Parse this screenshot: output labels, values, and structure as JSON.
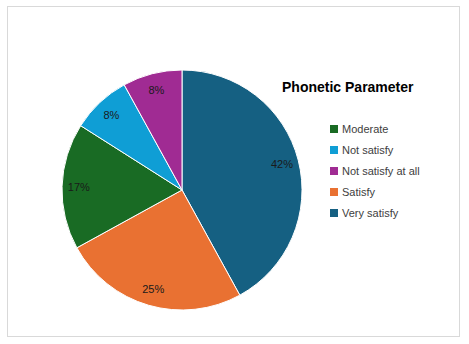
{
  "chart_data": {
    "type": "pie",
    "title": "Phonetic Parameter",
    "categories": [
      "Very satisfy",
      "Satisfy",
      "Moderate",
      "Not satisfy",
      "Not satisfy at all"
    ],
    "values": [
      42,
      25,
      17,
      8,
      8
    ],
    "value_labels": [
      "42%",
      "25%",
      "17%",
      "8%",
      "8%"
    ],
    "colors": [
      "#156082",
      "#E97132",
      "#196B24",
      "#0F9ED5",
      "#A02B93"
    ],
    "data_labels": true,
    "legend": "right"
  }
}
